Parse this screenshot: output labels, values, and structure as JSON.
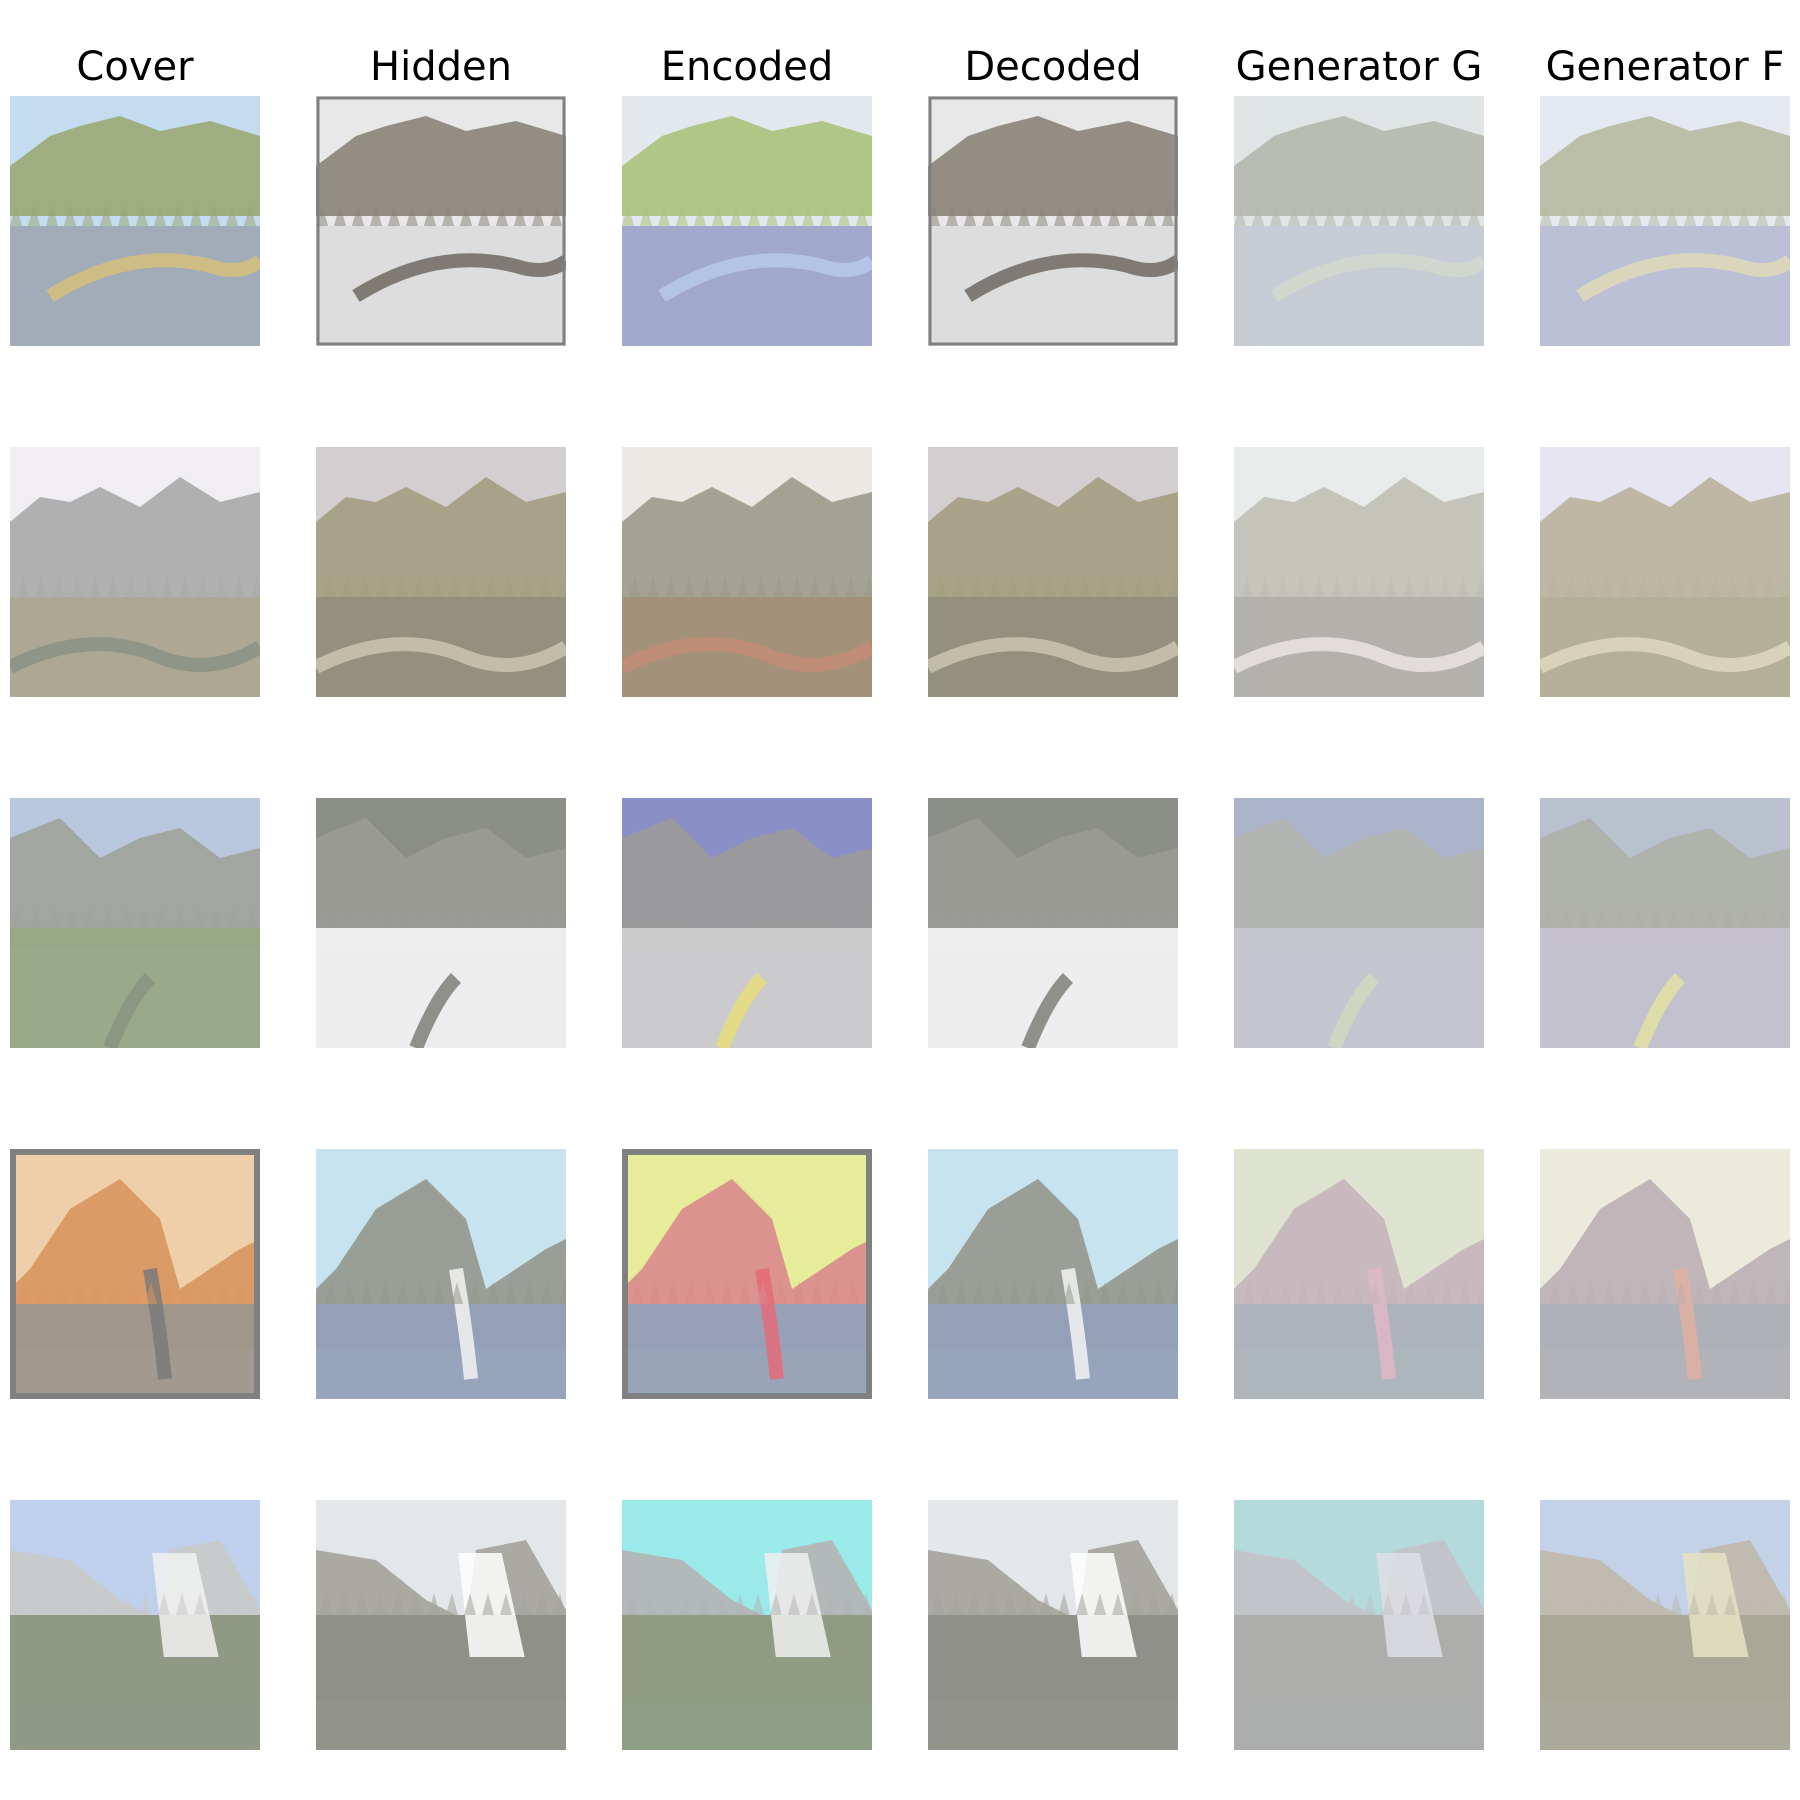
{
  "columns": [
    "Cover",
    "Hidden",
    "Encoded",
    "Decoded",
    "Generator G",
    "Generator F"
  ],
  "rows": [
    {
      "scene": "meadow-creek",
      "cover": {
        "sky": "#c3dcef",
        "mid": "#9aa874",
        "ground": "#a0a9b4",
        "accent": "#d5c07a"
      },
      "hidden": {
        "sky": "#e8e8e8",
        "mid": "#8b8378",
        "ground": "#dcdcdc",
        "accent": "#6f6a62"
      },
      "encoded": {
        "sky": "#e3e8ee",
        "mid": "#a9c27a",
        "ground": "#9ca4c8",
        "accent": "#b7c9e9"
      },
      "gen_g": {
        "sky": "#d8dede",
        "mid": "#a4a89a",
        "ground": "#b7bfc8",
        "accent": "#c9d0c4"
      },
      "gen_f": {
        "sky": "#dfe4ee",
        "mid": "#a8ab8a",
        "ground": "#aab0cc",
        "accent": "#d8d2a8"
      }
    },
    {
      "scene": "valley-clouds",
      "cover": {
        "sky": "#f0edf3",
        "mid": "#a9a9a9",
        "ground": "#a9a48e",
        "accent": "#8b9385"
      },
      "hidden": {
        "sky": "#d3cfd0",
        "mid": "#a39c80",
        "ground": "#8f8c78",
        "accent": "#cbc4b0"
      },
      "encoded": {
        "sky": "#ece8e4",
        "mid": "#9b9a8a",
        "ground": "#a08c74",
        "accent": "#c48b78"
      },
      "gen_g": {
        "sky": "#e2e8e6",
        "mid": "#b3b1a5",
        "ground": "#9e9c96",
        "accent": "#e6dede"
      },
      "gen_f": {
        "sky": "#e1e0ee",
        "mid": "#aaa286",
        "ground": "#a09a7a",
        "accent": "#d8cfb0"
      }
    },
    {
      "scene": "snow-trail",
      "cover": {
        "sky": "#b9c8df",
        "mid": "#9fa29a",
        "ground": "#98a884",
        "accent": "#8a9480"
      },
      "hidden": {
        "sky": "#8b8f88",
        "mid": "#9b9b97",
        "ground": "#f2f2f2",
        "accent": "#7c7f77"
      },
      "encoded": {
        "sky": "#8b8fc8",
        "mid": "#9b9b99",
        "ground": "#cfcfcf",
        "accent": "#e8dd7a"
      },
      "gen_g": {
        "sky": "#9aa4c0",
        "mid": "#a3a49e",
        "ground": "#b8bac4",
        "accent": "#c8cfb4"
      },
      "gen_f": {
        "sky": "#aab4c4",
        "mid": "#9d9e96",
        "ground": "#b8b4c4",
        "accent": "#dcdc90"
      }
    },
    {
      "scene": "dome-sunset",
      "cover": {
        "sky": "#efcfa9",
        "mid": "#d8955e",
        "ground": "#9d978c",
        "accent": "#7a7a7a"
      },
      "hidden": {
        "sky": "#c6e3ef",
        "mid": "#93978c",
        "ground": "#93a0b8",
        "accent": "#f3f3f3"
      },
      "encoded": {
        "sky": "#e6ec9a",
        "mid": "#d88a8c",
        "ground": "#93a0b8",
        "accent": "#e46a78"
      },
      "gen_g": {
        "sky": "#d7ddc6",
        "mid": "#b8a4ac",
        "ground": "#9aa2ae",
        "accent": "#d9a8b8"
      },
      "gen_f": {
        "sky": "#e8e6d4",
        "mid": "#ac9ea6",
        "ground": "#9c9fa8",
        "accent": "#d9a08c"
      }
    },
    {
      "scene": "granite-peak",
      "cover": {
        "sky": "#bfd0ec",
        "mid": "#c9c9c9",
        "ground": "#8d9680",
        "accent": "#f2f2f2"
      },
      "hidden": {
        "sky": "#e4e7ea",
        "mid": "#a3a39b",
        "ground": "#8d8f87",
        "accent": "#ffffff"
      },
      "encoded": {
        "sky": "#9aeaea",
        "mid": "#b4b4b4",
        "ground": "#8d9a7e",
        "accent": "#f0f0f0"
      },
      "gen_g": {
        "sky": "#a4d2d4",
        "mid": "#b6b6bc",
        "ground": "#9a9a98",
        "accent": "#d8d8e0"
      },
      "gen_f": {
        "sky": "#b8c8e4",
        "mid": "#b0aa98",
        "ground": "#96937e",
        "accent": "#e0dcb8"
      }
    }
  ]
}
